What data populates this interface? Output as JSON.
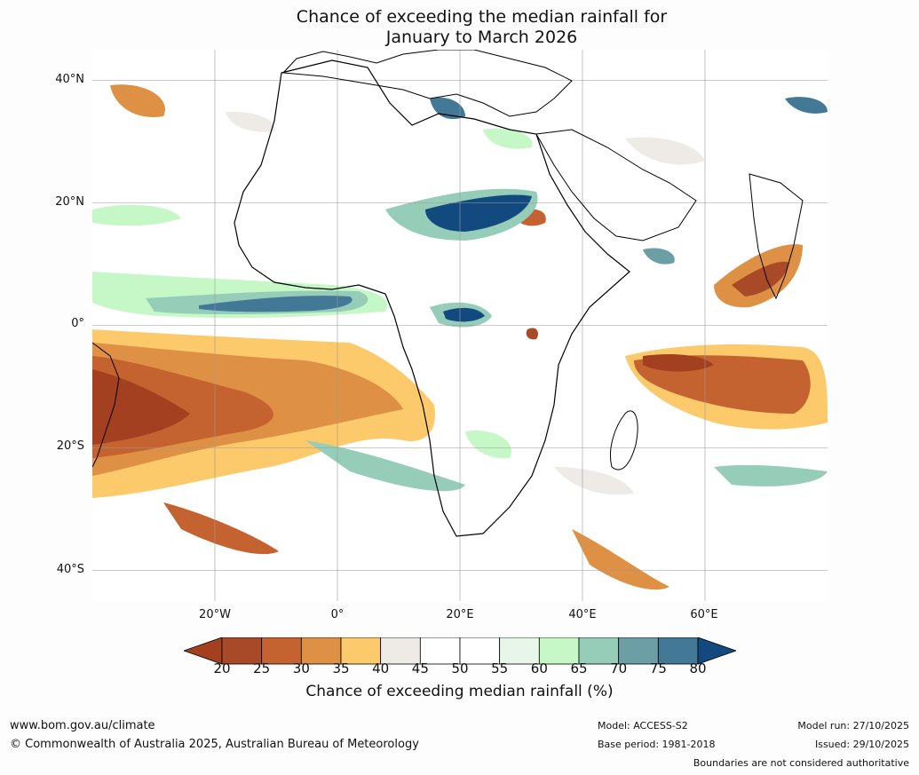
{
  "title": {
    "line1": "Chance of exceeding the median rainfall for",
    "line2": "January to March 2026"
  },
  "map": {
    "lat_labels": [
      "40°N",
      "20°N",
      "0°",
      "20°S",
      "40°S"
    ],
    "lon_labels": [
      "20°W",
      "0°",
      "20°E",
      "40°E",
      "60°E"
    ],
    "lat_range": [
      -45,
      45
    ],
    "lon_range": [
      -40,
      80
    ],
    "gridline_lats": [
      40,
      20,
      0,
      -20,
      -40
    ],
    "gridline_lons": [
      -20,
      0,
      20,
      40,
      60
    ],
    "icon": "africa-landmass-outline"
  },
  "colorbar": {
    "ticks": [
      "20",
      "25",
      "30",
      "35",
      "40",
      "45",
      "50",
      "55",
      "60",
      "65",
      "70",
      "75",
      "80"
    ],
    "colors": [
      "#a2401f",
      "#a84a27",
      "#c46230",
      "#de9144",
      "#fcc96b",
      "#eeebe6",
      "#ffffff",
      "#ffffff",
      "#e7f6e8",
      "#c6f7c6",
      "#96cdb8",
      "#6b9ea5",
      "#437897",
      "#124a80"
    ],
    "label": "Chance of exceeding median rainfall (%)"
  },
  "footer": {
    "website": "www.bom.gov.au/climate",
    "copyright": "© Commonwealth of Australia 2025, Australian Bureau of Meteorology",
    "model": "Model: ACCESS-S2",
    "base_period": "Base period: 1981-2018",
    "model_run": "Model run: 27/10/2025",
    "issued": "Issued: 29/10/2025",
    "disclaimer": "Boundaries are not considered authoritative"
  }
}
